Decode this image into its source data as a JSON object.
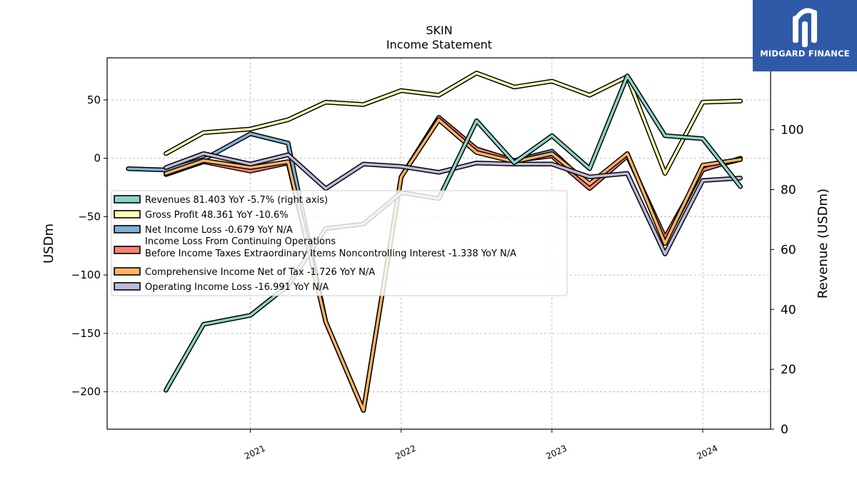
{
  "brand": {
    "name": "MIDGARD FINANCE",
    "logo_icon": "midgard-logo-icon",
    "color": "#2f5aa8"
  },
  "chart_data": {
    "type": "line",
    "title": "SKIN",
    "subtitle": "Income Statement",
    "ylabel": "USDm",
    "y2label": "Revenue (USDm)",
    "ylim": [
      -232,
      86
    ],
    "y2lim": [
      0,
      124
    ],
    "yticks": [
      50,
      0,
      -50,
      -100,
      -150,
      -200
    ],
    "y2ticks": [
      0,
      20,
      40,
      60,
      80,
      100
    ],
    "xlim": [
      2020.05,
      2024.45
    ],
    "xticks": [
      2021,
      2022,
      2023,
      2024
    ],
    "xticklabels": [
      "2021",
      "2022",
      "2023",
      "2024"
    ],
    "grid": true,
    "legend_position": "center-left",
    "series": [
      {
        "name": "Gross Profit  48.361 YoY -10.6%",
        "color": "#ffffb3",
        "axis": "left",
        "points": [
          [
            2020.44,
            4
          ],
          [
            2020.69,
            22
          ],
          [
            2021.0,
            25
          ],
          [
            2021.25,
            33
          ],
          [
            2021.5,
            48
          ],
          [
            2021.75,
            46
          ],
          [
            2022.0,
            58
          ],
          [
            2022.25,
            54
          ],
          [
            2022.5,
            73
          ],
          [
            2022.75,
            61
          ],
          [
            2023.0,
            66
          ],
          [
            2023.25,
            54
          ],
          [
            2023.5,
            70
          ],
          [
            2023.75,
            -13
          ],
          [
            2024.0,
            48
          ],
          [
            2024.25,
            49
          ]
        ]
      },
      {
        "name": "Net Income Loss  -0.679 YoY N/A",
        "color": "#80b1d3",
        "axis": "left",
        "points": [
          [
            2020.19,
            -9
          ],
          [
            2020.44,
            -10
          ],
          [
            2020.69,
            -1
          ],
          [
            2021.0,
            21
          ],
          [
            2021.25,
            13
          ],
          [
            2021.5,
            -140
          ],
          [
            2021.75,
            -216
          ],
          [
            2022.0,
            -16
          ],
          [
            2022.25,
            35
          ],
          [
            2022.5,
            7
          ],
          [
            2022.75,
            -2
          ],
          [
            2023.0,
            6
          ],
          [
            2023.25,
            -24
          ],
          [
            2023.5,
            4
          ],
          [
            2023.75,
            -72
          ],
          [
            2024.0,
            -9
          ],
          [
            2024.25,
            -1
          ]
        ]
      },
      {
        "name": "Income Loss From Continuing Operations\nBefore Income Taxes Extraordinary Items Noncontrolling Interest  -1.338 YoY N/A",
        "color": "#fb8072",
        "axis": "left",
        "points": [
          [
            2020.44,
            -14
          ],
          [
            2020.69,
            -3
          ],
          [
            2021.0,
            -11
          ],
          [
            2021.25,
            -4
          ],
          [
            2021.5,
            -140
          ],
          [
            2021.75,
            -216
          ],
          [
            2022.0,
            -16
          ],
          [
            2022.25,
            35
          ],
          [
            2022.5,
            8
          ],
          [
            2022.75,
            -2
          ],
          [
            2023.0,
            2
          ],
          [
            2023.25,
            -26
          ],
          [
            2023.5,
            2
          ],
          [
            2023.75,
            -68
          ],
          [
            2024.0,
            -10
          ],
          [
            2024.25,
            0
          ]
        ]
      },
      {
        "name": "Comprehensive Income Net of Tax  -1.726 YoY N/A",
        "color": "#fdb462",
        "axis": "left",
        "points": [
          [
            2020.44,
            -13
          ],
          [
            2020.69,
            -2
          ],
          [
            2021.0,
            -8
          ],
          [
            2021.25,
            -3
          ],
          [
            2021.5,
            -140
          ],
          [
            2021.75,
            -216
          ],
          [
            2022.0,
            -16
          ],
          [
            2022.25,
            33
          ],
          [
            2022.5,
            5
          ],
          [
            2022.75,
            -3
          ],
          [
            2023.0,
            4
          ],
          [
            2023.25,
            -22
          ],
          [
            2023.5,
            4
          ],
          [
            2023.75,
            -73
          ],
          [
            2024.0,
            -6
          ],
          [
            2024.25,
            -1
          ]
        ]
      },
      {
        "name": "Operating Income Loss  -16.991 YoY N/A",
        "color": "#bebada",
        "axis": "left",
        "points": [
          [
            2020.44,
            -8
          ],
          [
            2020.69,
            4
          ],
          [
            2021.0,
            -5
          ],
          [
            2021.25,
            3
          ],
          [
            2021.5,
            -26
          ],
          [
            2021.75,
            -5
          ],
          [
            2022.0,
            -7
          ],
          [
            2022.25,
            -12
          ],
          [
            2022.5,
            -4
          ],
          [
            2022.75,
            -5
          ],
          [
            2023.0,
            -5
          ],
          [
            2023.25,
            -16
          ],
          [
            2023.5,
            -13
          ],
          [
            2023.75,
            -82
          ],
          [
            2024.0,
            -19
          ],
          [
            2024.25,
            -17
          ]
        ]
      },
      {
        "name": "Revenues  81.403 YoY -5.7% (right axis)",
        "color": "#8dd3c7",
        "axis": "right",
        "points": [
          [
            2020.44,
            13
          ],
          [
            2020.69,
            35
          ],
          [
            2021.0,
            38
          ],
          [
            2021.25,
            48
          ],
          [
            2021.5,
            67
          ],
          [
            2021.75,
            68.5
          ],
          [
            2022.0,
            79
          ],
          [
            2022.25,
            77
          ],
          [
            2022.5,
            103
          ],
          [
            2022.75,
            89
          ],
          [
            2023.0,
            98
          ],
          [
            2023.25,
            87
          ],
          [
            2023.5,
            118
          ],
          [
            2023.75,
            98
          ],
          [
            2024.0,
            97
          ],
          [
            2024.25,
            81
          ]
        ]
      }
    ],
    "legend_order": [
      5,
      0,
      1,
      2,
      3,
      4
    ]
  }
}
